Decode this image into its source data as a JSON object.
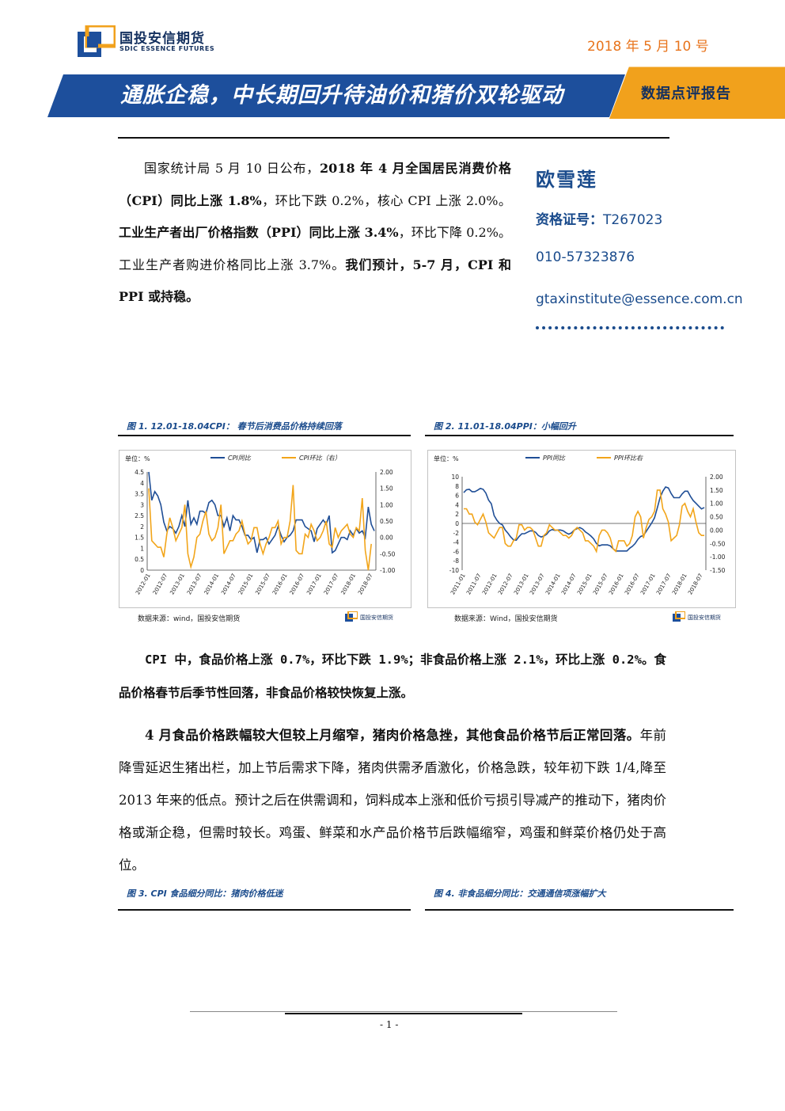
{
  "header": {
    "logo_cn": "国投安信期货",
    "logo_en": "SDIC ESSENCE FUTURES",
    "date": "2018 年 5 月 10 号",
    "title": "通胀企稳，中长期回升待油价和猪价双轮驱动",
    "report_type": "数据点评报告",
    "colors": {
      "brand_blue": "#14305f",
      "banner_blue": "#1d4f9c",
      "accent_orange": "#f1a11c"
    }
  },
  "intro": {
    "t1": "国家统计局 5 月 10 日公布，",
    "b1": "2018 年 4 月全国居民消费价格（CPI）同比上涨 1.8%",
    "t2": "，环比下跌 0.2%，核心 CPI 上涨 2.0%。",
    "b2": "工业生产者出厂价格指数（PPI）同比上涨 3.4%",
    "t3": "，环比下降 0.2%。工业生产者购进价格同比上涨 3.7%。",
    "b3": "我们预计，5-7 月，CPI 和 PPI 或持稳。"
  },
  "author": {
    "name": "欧雪莲",
    "cert_label": "资格证号：",
    "cert_no": "T267023",
    "phone": "010-57323876",
    "email": "gtaxinstitute@essence.com.cn"
  },
  "figures": {
    "fig1_caption": "图 1. 12.01-18.04CPI：  春节后消费品价格持续回落",
    "fig2_caption": "图 2. 11.01-18.04PPI：小幅回升",
    "fig3_caption": "图 3. CPI 食品细分同比：猪肉价格低迷",
    "fig4_caption": "图 4. 非食品细分同比：交通通信项涨幅扩大",
    "fig1_source": "数据来源：wind，国投安信期货",
    "fig2_source": "数据来源：Wind，国投安信期货",
    "logo_small": "国投安信期货"
  },
  "body": {
    "p1_a": "CPI 中，食品价格上涨 0.7%，环比下跌 1.9%；非食品价格上涨 2.1%，环比上涨 0.2%。食品价格春节后季节性回落，非食品价格较快恢复上涨。",
    "p2_bold": "4 月食品价格跌幅较大但较上月缩窄，猪肉价格急挫，其他食品价格节后正常回落。",
    "p2_text": "年前降雪延迟生猪出栏，加上节后需求下降，猪肉供需矛盾激化，价格急跌，较年初下跌 1/4,降至 2013 年来的低点。预计之后在供需调和，饲料成本上涨和低价亏损引导减产的推动下，猪肉价格或渐企稳，但需时较长。鸡蛋、鲜菜和水产品价格节后跌幅缩窄，鸡蛋和鲜菜价格仍处于高位。"
  },
  "footer": {
    "page": "- 1 -"
  },
  "chart_data": [
    {
      "type": "line",
      "unit_label": "单位：%",
      "x_ticks": [
        "2012-01",
        "2012-07",
        "2013-01",
        "2013-07",
        "2014-01",
        "2014-07",
        "2015-01",
        "2015-07",
        "2016-01",
        "2016-07",
        "2017-01",
        "2017-07",
        "2018-01",
        "2018-07"
      ],
      "ylim_left": [
        0,
        4.5
      ],
      "ylim_right": [
        -1.0,
        2.0
      ],
      "left_ticks": [
        "0",
        "0.5",
        "1",
        "1.5",
        "2",
        "2.5",
        "3",
        "3.5",
        "4",
        "4.5"
      ],
      "right_ticks": [
        "-1.00",
        "-0.50",
        "0.00",
        "0.50",
        "1.00",
        "1.50",
        "2.00"
      ],
      "grid": false,
      "legend_position": "top",
      "series": [
        {
          "name": "CPI同比",
          "axis": "left",
          "color": "#1f4e96",
          "values": [
            4.5,
            3.2,
            3.6,
            3.4,
            3.0,
            2.2,
            1.8,
            2.0,
            1.9,
            1.7,
            2.0,
            2.5,
            2.0,
            3.2,
            2.1,
            2.4,
            2.1,
            2.7,
            2.7,
            2.6,
            3.1,
            3.2,
            3.0,
            2.5,
            2.5,
            2.0,
            2.4,
            1.8,
            2.5,
            2.3,
            2.3,
            2.0,
            1.6,
            1.6,
            1.4,
            1.5,
            0.8,
            1.4,
            1.4,
            1.5,
            1.2,
            1.4,
            1.6,
            2.0,
            1.6,
            1.3,
            1.5,
            1.6,
            1.8,
            2.3,
            2.3,
            2.3,
            2.0,
            1.9,
            1.8,
            1.3,
            1.9,
            2.1,
            2.3,
            2.1,
            2.5,
            0.8,
            0.9,
            1.2,
            1.5,
            1.5,
            1.4,
            1.8,
            1.6,
            1.9,
            1.7,
            1.8,
            1.5,
            2.9,
            2.1,
            1.8
          ]
        },
        {
          "name": "CPI环比（右）",
          "axis": "right",
          "color": "#f2a51a",
          "values": [
            1.5,
            -0.1,
            -0.2,
            -0.3,
            -0.3,
            -0.6,
            0.1,
            0.6,
            0.3,
            -0.1,
            0.1,
            0.3,
            1.0,
            -0.5,
            -0.9,
            -0.6,
            0.0,
            0.1,
            0.5,
            0.8,
            0.1,
            -0.1,
            0.0,
            0.3,
            1.0,
            -0.5,
            -0.3,
            -0.1,
            -0.1,
            0.1,
            0.2,
            0.5,
            0.1,
            -0.2,
            -0.1,
            0.3,
            0.3,
            -0.2,
            -0.5,
            -0.2,
            0.0,
            0.3,
            0.3,
            0.5,
            -0.2,
            0.0,
            0.0,
            0.5,
            1.6,
            -0.4,
            -0.5,
            -0.5,
            0.1,
            0.0,
            0.4,
            0.2,
            -0.1,
            0.0,
            0.2,
            0.5,
            -0.2,
            -0.3,
            0.3,
            0.0,
            0.2,
            0.3,
            0.4,
            0.1,
            0.0,
            0.3,
            0.2,
            1.2,
            -0.4,
            -1.0,
            -0.2
          ]
        }
      ]
    },
    {
      "type": "line",
      "unit_label": "单位：%",
      "x_ticks": [
        "2011-01",
        "2011-07",
        "2012-01",
        "2012-07",
        "2013-01",
        "2013-07",
        "2014-01",
        "2014-07",
        "2015-01",
        "2015-07",
        "2016-01",
        "2016-07",
        "2017-01",
        "2017-07",
        "2018-01",
        "2018-07"
      ],
      "ylim_left": [
        -10,
        10
      ],
      "ylim_right": [
        -1.5,
        2.0
      ],
      "left_ticks": [
        "-10",
        "-8",
        "-6",
        "-4",
        "-2",
        "0",
        "2",
        "4",
        "6",
        "8",
        "10"
      ],
      "right_ticks": [
        "-1.50",
        "-1.00",
        "-0.50",
        "0.00",
        "0.50",
        "1.00",
        "1.50",
        "2.00"
      ],
      "grid": false,
      "legend_position": "top",
      "series": [
        {
          "name": "PPI同比",
          "axis": "left",
          "color": "#1f4e96",
          "values": [
            6.6,
            7.2,
            7.3,
            6.8,
            6.8,
            7.1,
            7.5,
            7.3,
            6.5,
            5.0,
            4.2,
            1.7,
            0.7,
            0.0,
            -0.3,
            -1.4,
            -2.1,
            -2.9,
            -3.5,
            -3.6,
            -2.8,
            -2.2,
            -2.2,
            -1.9,
            -1.6,
            -1.6,
            -1.9,
            -2.6,
            -2.9,
            -2.7,
            -2.3,
            -1.6,
            -1.3,
            -1.5,
            -1.4,
            -1.4,
            -1.6,
            -2.0,
            -2.3,
            -2.0,
            -1.4,
            -1.1,
            -0.9,
            -1.2,
            -1.8,
            -2.2,
            -2.7,
            -3.3,
            -4.3,
            -4.8,
            -4.6,
            -4.6,
            -4.6,
            -4.8,
            -5.4,
            -5.9,
            -5.9,
            -5.9,
            -5.9,
            -5.9,
            -5.3,
            -4.9,
            -4.3,
            -3.4,
            -2.8,
            -2.6,
            -1.7,
            -0.8,
            0.1,
            1.2,
            3.3,
            5.5,
            6.9,
            7.8,
            7.6,
            6.4,
            5.5,
            5.5,
            5.5,
            6.3,
            6.9,
            6.9,
            5.8,
            4.9,
            4.3,
            3.7,
            3.1,
            3.4
          ]
        },
        {
          "name": "PPI环比右",
          "axis": "right",
          "color": "#f2a51a",
          "values": [
            0.8,
            0.8,
            0.6,
            0.6,
            0.3,
            0.2,
            0.4,
            0.6,
            0.3,
            -0.1,
            -0.2,
            -0.3,
            -0.1,
            0.1,
            0.1,
            -0.5,
            -0.6,
            -0.6,
            -0.4,
            -0.3,
            0.2,
            0.2,
            0.0,
            0.1,
            0.1,
            0.0,
            -0.3,
            -0.6,
            -0.6,
            -0.2,
            -0.1,
            0.2,
            0.1,
            0.0,
            0.0,
            -0.1,
            -0.2,
            -0.2,
            -0.3,
            -0.2,
            0.0,
            0.1,
            0.0,
            -0.1,
            -0.4,
            -0.4,
            -0.5,
            -0.6,
            -0.8,
            -0.2,
            0.0,
            0.0,
            -0.1,
            -0.3,
            -0.7,
            -0.8,
            -0.4,
            -0.4,
            -0.4,
            -0.6,
            -0.5,
            -0.2,
            0.5,
            0.7,
            0.5,
            -0.3,
            0.1,
            0.4,
            0.5,
            0.7,
            1.5,
            1.5,
            0.8,
            0.6,
            0.3,
            -0.4,
            -0.3,
            -0.2,
            0.2,
            0.9,
            1.0,
            0.7,
            0.5,
            0.8,
            0.3,
            -0.1,
            -0.2,
            -0.2
          ]
        }
      ]
    }
  ]
}
